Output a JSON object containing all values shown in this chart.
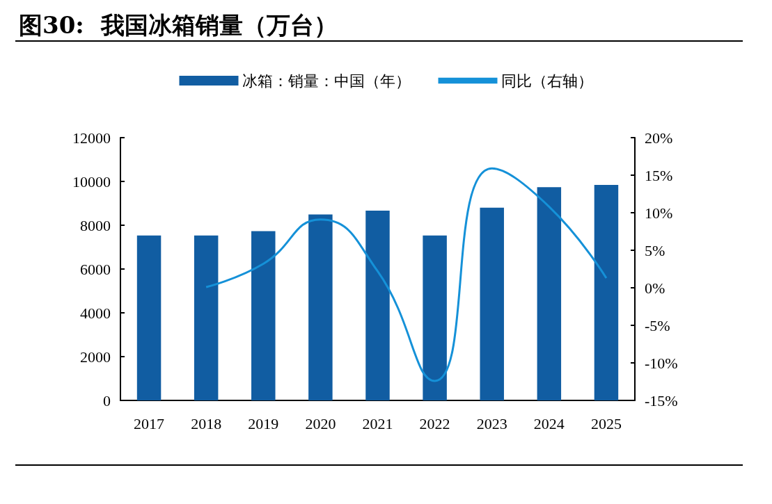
{
  "chart_data": {
    "type": "bar",
    "title": "图30:  我国冰箱销量（万台）",
    "categories": [
      "2017",
      "2018",
      "2019",
      "2020",
      "2021",
      "2022",
      "2023",
      "2024",
      "2025"
    ],
    "series": [
      {
        "name": "冰箱：销量：中国（年）",
        "color": "#115da2",
        "values": [
          7530,
          7530,
          7730,
          8490,
          8670,
          7530,
          8800,
          9740,
          9840
        ]
      },
      {
        "name": "同比（右轴）",
        "type": "line",
        "axis": "y2",
        "color": "#1591d8",
        "marker": "none",
        "values": [
          null,
          0.1,
          3.2,
          9.1,
          2.2,
          -12.4,
          15.9,
          10.8,
          1.3
        ]
      }
    ],
    "ylim": [
      0,
      12000
    ],
    "yticks": [
      0,
      2000,
      4000,
      6000,
      8000,
      10000,
      12000
    ],
    "y2lim": [
      -15,
      20
    ],
    "y2ticks": [
      {
        "value": -15,
        "label": "-15%"
      },
      {
        "value": -10,
        "label": "-10%"
      },
      {
        "value": -5,
        "label": "-5%"
      },
      {
        "value": 0,
        "label": "0%"
      },
      {
        "value": 5,
        "label": "5%"
      },
      {
        "value": 10,
        "label": "10%"
      },
      {
        "value": 15,
        "label": "15%"
      },
      {
        "value": 20,
        "label": "20%"
      }
    ],
    "legend": "top",
    "grid": false
  }
}
